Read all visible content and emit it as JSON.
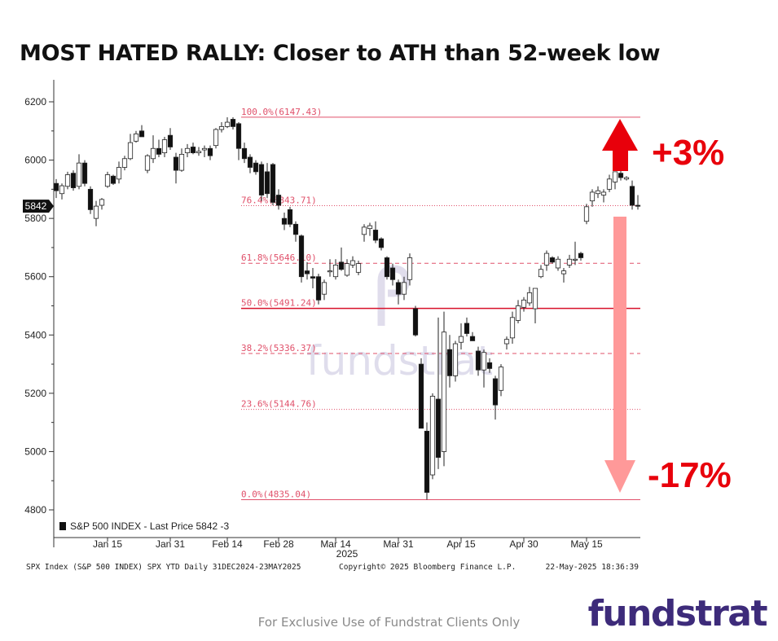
{
  "title": "MOST HATED RALLY: Closer to ATH than 52-week low",
  "footer_note": "For Exclusive Use of Fundstrat Clients Only",
  "brand": "fundstrat",
  "watermark": "fundstrat",
  "colors": {
    "fib": "#e0506a",
    "down_candle": "#111111",
    "up_candle": "#ffffff",
    "arrow_up": "#e8000b",
    "arrow_down": "#ff9999",
    "up_pct_text": "#e8000b",
    "down_pct_text": "#e8000b"
  },
  "annotations": {
    "up_pct": "+3%",
    "down_pct": "-17%"
  },
  "chart_data": {
    "type": "candlestick",
    "title": "MOST HATED RALLY: Closer to ATH than 52-week low",
    "ylim": [
      4770,
      6280
    ],
    "y_ticks": [
      4800,
      5000,
      5200,
      5400,
      5600,
      5800,
      6000,
      6200
    ],
    "x_ticks": [
      {
        "label": "Jan 15",
        "index": 9
      },
      {
        "label": "Jan 31",
        "index": 20
      },
      {
        "label": "Feb 14",
        "index": 30
      },
      {
        "label": "Feb 28",
        "index": 39
      },
      {
        "label": "Mar 14",
        "index": 49
      },
      {
        "label": "Mar 31",
        "index": 60
      },
      {
        "label": "Apr 15",
        "index": 71
      },
      {
        "label": "Apr 30",
        "index": 82
      },
      {
        "label": "May 15",
        "index": 93
      }
    ],
    "year_label": "2025",
    "last_price_tag": "5842",
    "legend": "S&P 500 INDEX - Last Price 5842  -3",
    "source_left": "SPX Index (S&P 500 INDEX) SPX YTD  Daily 31DEC2024-23MAY2025",
    "source_mid": "Copyright© 2025 Bloomberg Finance L.P.",
    "source_right": "22-May-2025 18:36:39",
    "fib_levels": [
      {
        "label": "100.0%(6147.43)",
        "value": 6147.43,
        "style": "solid"
      },
      {
        "label": "76.4%(5843.71)",
        "value": 5843.71,
        "style": "dotted"
      },
      {
        "label": "61.8%(5646.10)",
        "value": 5646.1,
        "style": "dashed"
      },
      {
        "label": "50.0%(5491.24)",
        "value": 5491.24,
        "style": "solid-strong"
      },
      {
        "label": "38.2%(5336.37)",
        "value": 5336.37,
        "style": "dashed"
      },
      {
        "label": "23.6%(5144.76)",
        "value": 5144.76,
        "style": "dotted"
      },
      {
        "label": "0.0%(4835.04)",
        "value": 4835.04,
        "style": "solid"
      }
    ],
    "series": [
      {
        "o": 5920,
        "h": 5935,
        "l": 5870,
        "c": 5895
      },
      {
        "o": 5885,
        "h": 5920,
        "l": 5865,
        "c": 5912
      },
      {
        "o": 5910,
        "h": 5960,
        "l": 5900,
        "c": 5950
      },
      {
        "o": 5955,
        "h": 5965,
        "l": 5895,
        "c": 5905
      },
      {
        "o": 5910,
        "h": 6020,
        "l": 5900,
        "c": 5990
      },
      {
        "o": 5990,
        "h": 6000,
        "l": 5910,
        "c": 5920
      },
      {
        "o": 5900,
        "h": 5910,
        "l": 5815,
        "c": 5830
      },
      {
        "o": 5800,
        "h": 5860,
        "l": 5773,
        "c": 5842
      },
      {
        "o": 5845,
        "h": 5870,
        "l": 5830,
        "c": 5865
      },
      {
        "o": 5910,
        "h": 5960,
        "l": 5905,
        "c": 5950
      },
      {
        "o": 5945,
        "h": 5950,
        "l": 5915,
        "c": 5920
      },
      {
        "o": 5935,
        "h": 5995,
        "l": 5920,
        "c": 5975
      },
      {
        "o": 5975,
        "h": 6015,
        "l": 5965,
        "c": 6005
      },
      {
        "o": 6005,
        "h": 6090,
        "l": 6000,
        "c": 6060
      },
      {
        "o": 6065,
        "h": 6100,
        "l": 6060,
        "c": 6090
      },
      {
        "o": 6100,
        "h": 6120,
        "l": 6080,
        "c": 6080
      },
      {
        "o": 5965,
        "h": 6020,
        "l": 5955,
        "c": 6015
      },
      {
        "o": 6005,
        "h": 6085,
        "l": 5990,
        "c": 6040
      },
      {
        "o": 6040,
        "h": 6070,
        "l": 6010,
        "c": 6020
      },
      {
        "o": 6025,
        "h": 6080,
        "l": 6010,
        "c": 6070
      },
      {
        "o": 6085,
        "h": 6110,
        "l": 6035,
        "c": 6045
      },
      {
        "o": 6010,
        "h": 6025,
        "l": 5920,
        "c": 5965
      },
      {
        "o": 5965,
        "h": 6040,
        "l": 5960,
        "c": 6020
      },
      {
        "o": 6025,
        "h": 6055,
        "l": 6010,
        "c": 6040
      },
      {
        "o": 6045,
        "h": 6060,
        "l": 6020,
        "c": 6025
      },
      {
        "o": 6025,
        "h": 6045,
        "l": 6015,
        "c": 6030
      },
      {
        "o": 6035,
        "h": 6050,
        "l": 6010,
        "c": 6040
      },
      {
        "o": 6040,
        "h": 6050,
        "l": 6000,
        "c": 6015
      },
      {
        "o": 6050,
        "h": 6110,
        "l": 6040,
        "c": 6105
      },
      {
        "o": 6105,
        "h": 6130,
        "l": 6095,
        "c": 6115
      },
      {
        "o": 6115,
        "h": 6147,
        "l": 6110,
        "c": 6130
      },
      {
        "o": 6140,
        "h": 6147,
        "l": 6105,
        "c": 6115
      },
      {
        "o": 6125,
        "h": 6130,
        "l": 6000,
        "c": 6040
      },
      {
        "o": 6040,
        "h": 6060,
        "l": 5990,
        "c": 6005
      },
      {
        "o": 6010,
        "h": 6020,
        "l": 5955,
        "c": 5975
      },
      {
        "o": 5990,
        "h": 6000,
        "l": 5950,
        "c": 5960
      },
      {
        "o": 5985,
        "h": 5995,
        "l": 5860,
        "c": 5880
      },
      {
        "o": 5960,
        "h": 5990,
        "l": 5870,
        "c": 5885
      },
      {
        "o": 5985,
        "h": 5990,
        "l": 5845,
        "c": 5855
      },
      {
        "o": 5880,
        "h": 5900,
        "l": 5830,
        "c": 5845
      },
      {
        "o": 5800,
        "h": 5820,
        "l": 5760,
        "c": 5780
      },
      {
        "o": 5830,
        "h": 5840,
        "l": 5770,
        "c": 5780
      },
      {
        "o": 5780,
        "h": 5790,
        "l": 5720,
        "c": 5745
      },
      {
        "o": 5740,
        "h": 5745,
        "l": 5580,
        "c": 5600
      },
      {
        "o": 5620,
        "h": 5650,
        "l": 5590,
        "c": 5610
      },
      {
        "o": 5600,
        "h": 5630,
        "l": 5560,
        "c": 5595
      },
      {
        "o": 5600,
        "h": 5610,
        "l": 5505,
        "c": 5520
      },
      {
        "o": 5540,
        "h": 5590,
        "l": 5520,
        "c": 5580
      },
      {
        "o": 5620,
        "h": 5660,
        "l": 5600,
        "c": 5620
      },
      {
        "o": 5600,
        "h": 5660,
        "l": 5590,
        "c": 5640
      },
      {
        "o": 5650,
        "h": 5700,
        "l": 5620,
        "c": 5625
      },
      {
        "o": 5605,
        "h": 5660,
        "l": 5600,
        "c": 5645
      },
      {
        "o": 5640,
        "h": 5670,
        "l": 5630,
        "c": 5655
      },
      {
        "o": 5615,
        "h": 5655,
        "l": 5605,
        "c": 5645
      },
      {
        "o": 5745,
        "h": 5780,
        "l": 5720,
        "c": 5770
      },
      {
        "o": 5765,
        "h": 5785,
        "l": 5740,
        "c": 5775
      },
      {
        "o": 5760,
        "h": 5790,
        "l": 5715,
        "c": 5725
      },
      {
        "o": 5730,
        "h": 5735,
        "l": 5690,
        "c": 5700
      },
      {
        "o": 5665,
        "h": 5670,
        "l": 5590,
        "c": 5600
      },
      {
        "o": 5630,
        "h": 5645,
        "l": 5570,
        "c": 5590
      },
      {
        "o": 5580,
        "h": 5590,
        "l": 5505,
        "c": 5540
      },
      {
        "o": 5540,
        "h": 5600,
        "l": 5520,
        "c": 5580
      },
      {
        "o": 5590,
        "h": 5680,
        "l": 5570,
        "c": 5665
      },
      {
        "o": 5490,
        "h": 5500,
        "l": 5395,
        "c": 5400
      },
      {
        "o": 5300,
        "h": 5320,
        "l": 5080,
        "c": 5080
      },
      {
        "o": 5070,
        "h": 5100,
        "l": 4835,
        "c": 4860
      },
      {
        "o": 4920,
        "h": 5200,
        "l": 4905,
        "c": 5190
      },
      {
        "o": 5180,
        "h": 5460,
        "l": 4940,
        "c": 4980
      },
      {
        "o": 5000,
        "h": 5480,
        "l": 4950,
        "c": 5410
      },
      {
        "o": 5350,
        "h": 5400,
        "l": 5220,
        "c": 5260
      },
      {
        "o": 5260,
        "h": 5380,
        "l": 5240,
        "c": 5370
      },
      {
        "o": 5375,
        "h": 5440,
        "l": 5350,
        "c": 5395
      },
      {
        "o": 5440,
        "h": 5460,
        "l": 5395,
        "c": 5405
      },
      {
        "o": 5395,
        "h": 5410,
        "l": 5380,
        "c": 5380
      },
      {
        "o": 5345,
        "h": 5360,
        "l": 5260,
        "c": 5280
      },
      {
        "o": 5280,
        "h": 5350,
        "l": 5220,
        "c": 5340
      },
      {
        "o": 5305,
        "h": 5320,
        "l": 5270,
        "c": 5285
      },
      {
        "o": 5250,
        "h": 5260,
        "l": 5110,
        "c": 5160
      },
      {
        "o": 5210,
        "h": 5300,
        "l": 5190,
        "c": 5290
      },
      {
        "o": 5370,
        "h": 5395,
        "l": 5350,
        "c": 5385
      },
      {
        "o": 5390,
        "h": 5480,
        "l": 5370,
        "c": 5460
      },
      {
        "o": 5450,
        "h": 5520,
        "l": 5440,
        "c": 5500
      },
      {
        "o": 5495,
        "h": 5530,
        "l": 5480,
        "c": 5520
      },
      {
        "o": 5510,
        "h": 5565,
        "l": 5500,
        "c": 5545
      },
      {
        "o": 5490,
        "h": 5560,
        "l": 5440,
        "c": 5560
      },
      {
        "o": 5600,
        "h": 5640,
        "l": 5595,
        "c": 5625
      },
      {
        "o": 5640,
        "h": 5690,
        "l": 5620,
        "c": 5680
      },
      {
        "o": 5665,
        "h": 5670,
        "l": 5645,
        "c": 5650
      },
      {
        "o": 5630,
        "h": 5670,
        "l": 5620,
        "c": 5660
      },
      {
        "o": 5610,
        "h": 5630,
        "l": 5580,
        "c": 5620
      },
      {
        "o": 5640,
        "h": 5675,
        "l": 5630,
        "c": 5660
      },
      {
        "o": 5660,
        "h": 5720,
        "l": 5640,
        "c": 5660
      },
      {
        "o": 5680,
        "h": 5685,
        "l": 5655,
        "c": 5665
      },
      {
        "o": 5790,
        "h": 5850,
        "l": 5780,
        "c": 5840
      },
      {
        "o": 5860,
        "h": 5900,
        "l": 5840,
        "c": 5890
      },
      {
        "o": 5885,
        "h": 5910,
        "l": 5870,
        "c": 5895
      },
      {
        "o": 5880,
        "h": 5900,
        "l": 5855,
        "c": 5890
      },
      {
        "o": 5900,
        "h": 5950,
        "l": 5890,
        "c": 5935
      },
      {
        "o": 5925,
        "h": 5960,
        "l": 5900,
        "c": 5960
      },
      {
        "o": 5955,
        "h": 5968,
        "l": 5930,
        "c": 5940
      },
      {
        "o": 5935,
        "h": 5945,
        "l": 5930,
        "c": 5940
      },
      {
        "o": 5910,
        "h": 5930,
        "l": 5830,
        "c": 5845
      },
      {
        "o": 5845,
        "h": 5880,
        "l": 5830,
        "c": 5842
      }
    ]
  }
}
